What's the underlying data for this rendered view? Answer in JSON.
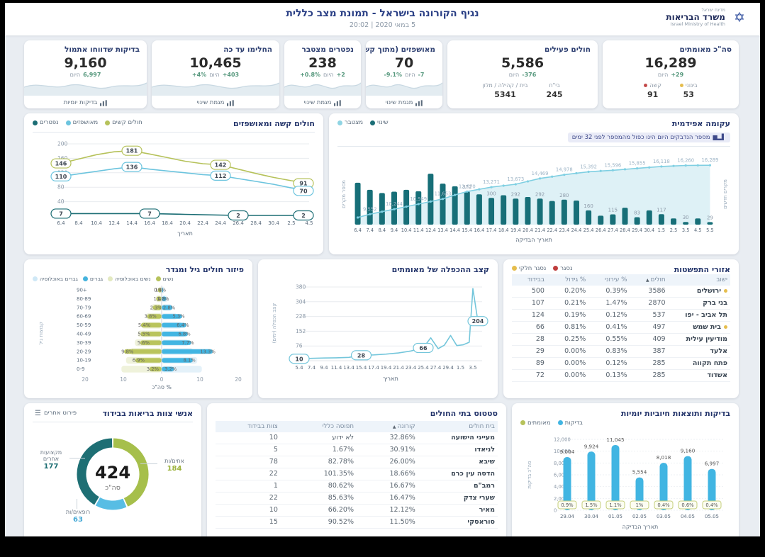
{
  "header": {
    "title": "נגיף הקורונה בישראל - תמונת מצב כללית",
    "datetime": "5 במאי 2020 | 20:02",
    "ministry_top": "מדינת ישראל",
    "ministry_he": "משרד הבריאות",
    "ministry_en": "Israel Ministry of Health",
    "logo_glyph": "✡"
  },
  "kpis": [
    {
      "id": "confirmed",
      "title": "סה\"כ מאומתים",
      "value": "16,289",
      "delta": "+29",
      "delta_suffix": "היום",
      "sub": [
        {
          "label": "בינוני",
          "value": "53",
          "dot": "#e5bd4d"
        },
        {
          "label": "קשה",
          "value": "91",
          "dot": "#c34a4a"
        }
      ]
    },
    {
      "id": "active",
      "title": "חולים פעילים",
      "value": "5,586",
      "delta": "-376",
      "delta_suffix": "היום",
      "sub": [
        {
          "label": "בי\"ח",
          "value": "245"
        },
        {
          "label": "בית / קהילה / מלון",
          "value": "5341"
        }
      ]
    },
    {
      "id": "hospitalized",
      "title": "מאושפזים (מתוך קשה)",
      "value": "70",
      "delta": "-7",
      "delta_suffix": "היום",
      "delta2": "-9.1%",
      "footer": "מגמת שינוי",
      "wave": true
    },
    {
      "id": "deaths",
      "title": "נפטרים מצטבר",
      "value": "238",
      "delta": "+2",
      "delta_suffix": "היום",
      "delta2": "+0.8%",
      "footer": "מגמת שינוי",
      "wave": true
    },
    {
      "id": "recovered",
      "title": "החלימו עד כה",
      "value": "10,465",
      "delta": "+403",
      "delta_suffix": "היום",
      "delta2": "+4%",
      "footer": "מגמת שינוי",
      "wave": true
    },
    {
      "id": "tests",
      "title": "בדיקות שדווחו אתמול",
      "value": "9,160",
      "delta": "6,997",
      "delta_suffix": "היום",
      "footer": "בדיקות יומיות",
      "wave": true
    }
  ],
  "charts": {
    "epidemic": {
      "type": "bar+line",
      "title": "עקומה אפידמית",
      "note": "מספר הנדבקים היום הינו כפול מהמספר לפני 32 ימים",
      "legend": [
        {
          "label": "שינוי",
          "color": "#1b6e76"
        },
        {
          "label": "מצטבר",
          "color": "#8fd4e3"
        }
      ],
      "xlabel": "תאריך הבדיקה",
      "ylabel_left": "מספר מקרים",
      "ylabel_right": "מקרים חדשים",
      "bars": [
        {
          "x": "6.4",
          "v": 470
        },
        {
          "x": "7.4",
          "v": 390
        },
        {
          "x": "8.4",
          "v": 355
        },
        {
          "x": "9.4",
          "v": 370
        },
        {
          "x": "10.4",
          "v": 390
        },
        {
          "x": "11.4",
          "v": 375
        },
        {
          "x": "12.4",
          "v": 571
        },
        {
          "x": "13.4",
          "v": 460
        },
        {
          "x": "14.4",
          "v": 430
        },
        {
          "x": "15.4",
          "v": 372,
          "label": "372"
        },
        {
          "x": "16.4",
          "v": 340
        },
        {
          "x": "17.4",
          "v": 300,
          "label": "300"
        },
        {
          "x": "18.4",
          "v": 330
        },
        {
          "x": "19.4",
          "v": 292,
          "label": "292"
        },
        {
          "x": "20.4",
          "v": 310
        },
        {
          "x": "21.4",
          "v": 292,
          "label": "292"
        },
        {
          "x": "22.4",
          "v": 265
        },
        {
          "x": "23.4",
          "v": 280,
          "label": "280"
        },
        {
          "x": "24.4",
          "v": 270
        },
        {
          "x": "25.4",
          "v": 160,
          "label": "160"
        },
        {
          "x": "26.4",
          "v": 100
        },
        {
          "x": "27.4",
          "v": 115,
          "label": "115"
        },
        {
          "x": "28.4",
          "v": 190
        },
        {
          "x": "29.4",
          "v": 83,
          "label": "83"
        },
        {
          "x": "30.4",
          "v": 160
        },
        {
          "x": "1.5",
          "v": 117,
          "label": "117"
        },
        {
          "x": "2.5",
          "v": 70
        },
        {
          "x": "3.5",
          "v": 30,
          "label": "30"
        },
        {
          "x": "4.5",
          "v": 70
        },
        {
          "x": "5.5",
          "v": 29,
          "label": "29"
        }
      ],
      "cumulative": [
        {
          "x": "6.4",
          "v": 9100
        },
        {
          "x": "7.4",
          "v": 9552,
          "label": "9,552"
        },
        {
          "x": "8.4",
          "v": 9900
        },
        {
          "x": "9.4",
          "v": 10244,
          "label": "10,244"
        },
        {
          "x": "10.4",
          "v": 10600
        },
        {
          "x": "11.4",
          "v": 10949,
          "label": "10,949"
        },
        {
          "x": "12.4",
          "v": 11300
        },
        {
          "x": "13.4",
          "v": 11653,
          "label": "11,653"
        },
        {
          "x": "14.4",
          "v": 12200
        },
        {
          "x": "15.4",
          "v": 12670,
          "label": "12,670"
        },
        {
          "x": "16.4",
          "v": 12980
        },
        {
          "x": "17.4",
          "v": 13271,
          "label": "13,271"
        },
        {
          "x": "18.4",
          "v": 13480
        },
        {
          "x": "19.4",
          "v": 13673,
          "label": "13,673"
        },
        {
          "x": "20.4",
          "v": 14070
        },
        {
          "x": "21.4",
          "v": 14469,
          "label": "14,469"
        },
        {
          "x": "22.4",
          "v": 14720
        },
        {
          "x": "23.4",
          "v": 14978,
          "label": "14,978"
        },
        {
          "x": "24.4",
          "v": 15190
        },
        {
          "x": "25.4",
          "v": 15392,
          "label": "15,392"
        },
        {
          "x": "26.4",
          "v": 15500
        },
        {
          "x": "27.4",
          "v": 15596,
          "label": "15,596"
        },
        {
          "x": "28.4",
          "v": 15730
        },
        {
          "x": "29.4",
          "v": 15855,
          "label": "15,855"
        },
        {
          "x": "30.4",
          "v": 15990
        },
        {
          "x": "1.5",
          "v": 16118,
          "label": "16,118"
        },
        {
          "x": "2.5",
          "v": 16190
        },
        {
          "x": "3.5",
          "v": 16260,
          "label": "16,260"
        },
        {
          "x": "4.5",
          "v": 16275
        },
        {
          "x": "5.5",
          "v": 16289,
          "label": "16,289"
        }
      ]
    },
    "severe_hospitalized": {
      "type": "line",
      "title": "חולים קשה ומאושפזים",
      "legend": [
        {
          "label": "חולים קשים",
          "color": "#b6c25b"
        },
        {
          "label": "מאושפזים",
          "color": "#6cc4de"
        },
        {
          "label": "נפטרים",
          "color": "#1b6d74"
        }
      ],
      "x": [
        "6.4",
        "8.4",
        "10.4",
        "12.4",
        "14.4",
        "16.4",
        "18.4",
        "20.4",
        "22.4",
        "24.4",
        "26.4",
        "28.4",
        "30.4",
        "2.5",
        "4.5"
      ],
      "yticks": [
        40,
        80,
        120,
        160,
        200
      ],
      "xlabel": "תאריך",
      "series": [
        {
          "name": "חולים קשים",
          "color": "#b6c25b",
          "values": [
            146,
            158,
            170,
            178,
            181,
            172,
            162,
            152,
            145,
            142,
            130,
            118,
            107,
            98,
            91
          ],
          "labels": [
            [
              0,
              "146"
            ],
            [
              4,
              "181"
            ],
            [
              9,
              "142"
            ],
            [
              14,
              "91"
            ]
          ]
        },
        {
          "name": "מאושפזים",
          "color": "#6cc4de",
          "values": [
            110,
            117,
            124,
            131,
            136,
            130,
            125,
            120,
            115,
            112,
            104,
            96,
            88,
            78,
            70
          ],
          "labels": [
            [
              0,
              "110"
            ],
            [
              4,
              "136"
            ],
            [
              9,
              "112"
            ],
            [
              14,
              "70"
            ]
          ]
        },
        {
          "name": "נפטרים",
          "color": "#1b6d74",
          "values": [
            7,
            7,
            7,
            7,
            7,
            7,
            6,
            5,
            4,
            3,
            2,
            2,
            2,
            2,
            2
          ],
          "labels": [
            [
              0,
              "7"
            ],
            [
              5,
              "7"
            ],
            [
              10,
              "2"
            ],
            [
              14,
              "2"
            ]
          ]
        }
      ]
    },
    "pyramid": {
      "type": "bar",
      "title": "פיזור חולים גיל ומגדר",
      "legend": [
        {
          "label": "נשים",
          "color": "#b6c25b"
        },
        {
          "label": "נשים באוכלוסיה",
          "color": "#e3e9c0"
        },
        {
          "label": "גברים",
          "color": "#45b3dd"
        },
        {
          "label": "גברים באוכלוסיה",
          "color": "#cfe8f6"
        }
      ],
      "ages": [
        "+90",
        "80-89",
        "70-79",
        "60-69",
        "50-59",
        "40-49",
        "30-39",
        "20-29",
        "10-19",
        "0-9"
      ],
      "women": [
        1,
        1.4,
        2.3,
        3.8,
        5.4,
        5.5,
        5.6,
        9.8,
        6.9,
        3.2
      ],
      "women_labels": [
        "1%",
        "1.4%",
        "2.3%",
        "3.8%",
        "5.4%",
        "5.5%",
        "5.6%",
        "9.8%",
        "6.9%",
        "3.2%"
      ],
      "men": [
        0.4,
        1.2,
        2.8,
        5.3,
        6.4,
        6.8,
        7.7,
        13.3,
        8.1,
        3.2
      ],
      "men_labels": [
        "0.4%",
        "1.2%",
        "2.8%",
        "5.3%",
        "6.4%",
        "6.8%",
        "7.7%",
        "13.3%",
        "8.1%",
        "3.2%"
      ],
      "women_pop": [
        0.7,
        1.5,
        2.7,
        4.0,
        5.2,
        6.2,
        7.0,
        8.2,
        9.3,
        10.5
      ],
      "men_pop": [
        0.7,
        1.5,
        2.7,
        4.0,
        5.2,
        6.2,
        7.0,
        8.2,
        9.3,
        10.5
      ],
      "xticks": [
        "20",
        "10",
        "0",
        "10",
        "20"
      ],
      "xlabel": "% סה\"כ",
      "ylabel": "קבוצות גיל"
    },
    "doubling": {
      "type": "line",
      "title": "קצב ההכפלה של מאומתים",
      "xticks": [
        "5.4",
        "7.4",
        "9.4",
        "11.4",
        "13.4",
        "15.4",
        "17.4",
        "19.4",
        "21.4",
        "23.4",
        "25.4",
        "27.4",
        "29.4",
        "1.5",
        "3.5"
      ],
      "yticks": [
        76,
        152,
        228,
        304,
        380
      ],
      "xlabel": "תאריך",
      "ylabel": "קצב הכפלה (ימים)",
      "color": "#74c6db",
      "points": [
        [
          0,
          10
        ],
        [
          1,
          12
        ],
        [
          2,
          14
        ],
        [
          3,
          15
        ],
        [
          4,
          17
        ],
        [
          5,
          28
        ],
        [
          6,
          30
        ],
        [
          7,
          34
        ],
        [
          8,
          40
        ],
        [
          9,
          50
        ],
        [
          10,
          66
        ],
        [
          10.6,
          118
        ],
        [
          11.2,
          62
        ],
        [
          11.7,
          80
        ],
        [
          12.2,
          130
        ],
        [
          12.7,
          78
        ],
        [
          13.2,
          82
        ],
        [
          13.7,
          95
        ],
        [
          14,
          372
        ],
        [
          14.4,
          204
        ]
      ],
      "labels": [
        [
          0,
          "10"
        ],
        [
          5,
          "28"
        ],
        [
          10,
          "66"
        ],
        [
          14.4,
          "204"
        ]
      ]
    },
    "tests": {
      "type": "bar",
      "title": "בדיקות ותוצאות חיוביות יומיות",
      "legend": [
        {
          "label": "בדיקות",
          "color": "#41b5e2"
        },
        {
          "label": "מאומתים",
          "color": "#b6c25b"
        }
      ],
      "categories": [
        "29.04",
        "30.04",
        "01.05",
        "02.05",
        "03.05",
        "04.05",
        "05.05"
      ],
      "values": [
        9004,
        9924,
        11045,
        5554,
        8018,
        9160,
        6997
      ],
      "value_labels": [
        "9,004",
        "9,924",
        "11,045",
        "5,554",
        "8,018",
        "9,160",
        "6,997"
      ],
      "positive_pct": [
        "0.9%",
        "1.5%",
        "1.1%",
        "1%",
        "0.4%",
        "0.6%",
        "0.4%"
      ],
      "yticks": [
        0,
        2000,
        4000,
        6000,
        8000,
        10000,
        12000
      ],
      "xlabel": "תאריך הבדיקה",
      "ylabel": "סה\"כ בדיקות"
    }
  },
  "spread_table": {
    "title": "אזורי התפשטות",
    "legend": [
      {
        "label": "נסגר",
        "color": "#bf3d3d"
      },
      {
        "label": "נסגר חלקי",
        "color": "#e5bd4d"
      }
    ],
    "columns": [
      {
        "label": "ישוב"
      },
      {
        "label": "חולים",
        "sort": true
      },
      {
        "label": "% עירוני"
      },
      {
        "label": "% גידול"
      },
      {
        "label": "בבידוד"
      }
    ],
    "rows": [
      {
        "dot": "#e5bd4d",
        "cells": [
          "ירושלים",
          "3586",
          "0.39%",
          "0.20%",
          "500"
        ]
      },
      {
        "cells": [
          "בני ברק",
          "2870",
          "1.47%",
          "0.21%",
          "107"
        ]
      },
      {
        "cells": [
          "תל אביב - יפו",
          "537",
          "0.12%",
          "0.19%",
          "124"
        ]
      },
      {
        "dot": "#e5bd4d",
        "cells": [
          "בית שמש",
          "497",
          "0.41%",
          "0.81%",
          "66"
        ]
      },
      {
        "cells": [
          "מודיעין עילית",
          "409",
          "0.55%",
          "0.25%",
          "28"
        ]
      },
      {
        "cells": [
          "אלעד",
          "387",
          "0.83%",
          "0.00%",
          "29"
        ]
      },
      {
        "cells": [
          "פתח תקווה",
          "285",
          "0.12%",
          "0.00%",
          "89"
        ]
      },
      {
        "cells": [
          "אשדוד",
          "285",
          "0.13%",
          "0.00%",
          "72"
        ]
      }
    ]
  },
  "hospitals_table": {
    "title": "סטטוס בתי החולים",
    "columns": [
      {
        "label": "בית חולים"
      },
      {
        "label": "קורונה",
        "sort": true
      },
      {
        "label": "תפוסה כללי"
      },
      {
        "label": "צוות בבידוד"
      }
    ],
    "rows": [
      {
        "cells": [
          "מעייני הישועה",
          "32.86%",
          "לא ידוע",
          "10"
        ]
      },
      {
        "cells": [
          "לניאדו",
          "30.91%",
          "1.67%",
          "5"
        ]
      },
      {
        "cells": [
          "שיבא",
          "26.00%",
          "82.78%",
          "78"
        ]
      },
      {
        "cells": [
          "הדסה עין כרם",
          "18.66%",
          "101.35%",
          "22"
        ]
      },
      {
        "cells": [
          "רמב\"ם",
          "16.67%",
          "80.62%",
          "1"
        ]
      },
      {
        "cells": [
          "שערי צדק",
          "16.47%",
          "85.63%",
          "22"
        ]
      },
      {
        "cells": [
          "מאיר",
          "12.12%",
          "66.20%",
          "10"
        ]
      },
      {
        "cells": [
          "סוראסקי",
          "11.50%",
          "90.52%",
          "15"
        ]
      }
    ]
  },
  "donut": {
    "title": "אנשי צוות בריאות בבידוד",
    "button": "פירוט אחרים",
    "total": "424",
    "total_label": "סה\"כ",
    "segments": [
      {
        "label": "אחים/ות",
        "value": 184,
        "value_label": "184",
        "color": "#a6bf4b"
      },
      {
        "label": "רופאים/ות",
        "value": 63,
        "value_label": "63",
        "color": "#57bde4"
      },
      {
        "label": "מקצועות אחרים",
        "value": 177,
        "value_label": "177",
        "color": "#1e6f74"
      }
    ]
  }
}
